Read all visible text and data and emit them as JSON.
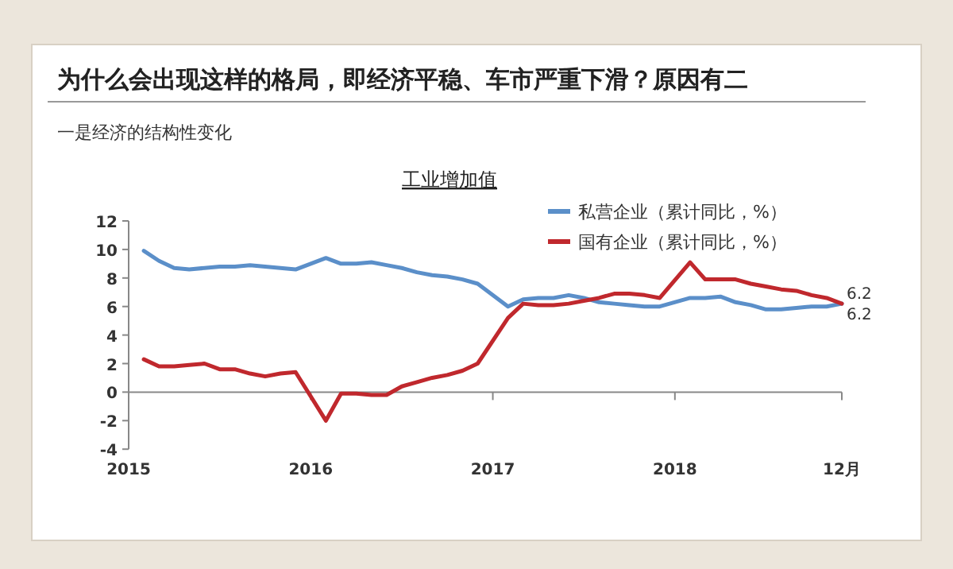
{
  "chart_data": {
    "type": "line",
    "title": "工业增加值",
    "annotations": [
      "为什么会出现这样的格局，即经济平稳、车市严重下滑？原因有二",
      "一是经济的结构性变化"
    ],
    "x": [
      "2015-02",
      "2015-03",
      "2015-04",
      "2015-05",
      "2015-06",
      "2015-07",
      "2015-08",
      "2015-09",
      "2015-10",
      "2015-11",
      "2015-12",
      "2016-02",
      "2016-03",
      "2016-04",
      "2016-05",
      "2016-06",
      "2016-07",
      "2016-08",
      "2016-09",
      "2016-10",
      "2016-11",
      "2016-12",
      "2017-02",
      "2017-03",
      "2017-04",
      "2017-05",
      "2017-06",
      "2017-07",
      "2017-08",
      "2017-09",
      "2017-10",
      "2017-11",
      "2017-12",
      "2018-02",
      "2018-03",
      "2018-04",
      "2018-05",
      "2018-06",
      "2018-07",
      "2018-08",
      "2018-09",
      "2018-10",
      "2018-11",
      "2018-12"
    ],
    "series": [
      {
        "name": "私营企业（累计同比，%）",
        "color": "#5b8fc9",
        "values": [
          9.9,
          9.2,
          8.7,
          8.6,
          8.7,
          8.8,
          8.8,
          8.9,
          8.8,
          8.7,
          8.6,
          9.4,
          9.0,
          9.0,
          9.1,
          8.9,
          8.7,
          8.4,
          8.2,
          8.1,
          7.9,
          7.6,
          6.0,
          6.5,
          6.6,
          6.6,
          6.8,
          6.6,
          6.3,
          6.2,
          6.1,
          6.0,
          6.0,
          6.6,
          6.6,
          6.7,
          6.3,
          6.1,
          5.8,
          5.8,
          5.9,
          6.0,
          6.0,
          6.2
        ],
        "value_labels": [
          null,
          null,
          null,
          null,
          null,
          null,
          null,
          null,
          null,
          null,
          null,
          null,
          null,
          null,
          null,
          null,
          null,
          null,
          null,
          null,
          null,
          null,
          null,
          null,
          null,
          null,
          null,
          null,
          null,
          null,
          null,
          null,
          null,
          null,
          null,
          null,
          null,
          null,
          null,
          null,
          null,
          null,
          null,
          "6.2"
        ]
      },
      {
        "name": "国有企业（累计同比，%）",
        "color": "#c0282d",
        "values": [
          2.3,
          1.8,
          1.8,
          1.9,
          2.0,
          1.6,
          1.6,
          1.3,
          1.1,
          1.3,
          1.4,
          -2.0,
          -0.1,
          -0.1,
          -0.2,
          -0.2,
          0.4,
          0.7,
          1.0,
          1.2,
          1.5,
          2.0,
          5.2,
          6.2,
          6.1,
          6.1,
          6.2,
          6.4,
          6.6,
          6.9,
          6.9,
          6.8,
          6.6,
          9.1,
          7.9,
          7.9,
          7.9,
          7.6,
          7.4,
          7.2,
          7.1,
          6.8,
          6.6,
          6.2
        ],
        "value_labels": [
          null,
          null,
          null,
          null,
          null,
          null,
          null,
          null,
          null,
          null,
          null,
          null,
          null,
          null,
          null,
          null,
          null,
          null,
          null,
          null,
          null,
          null,
          null,
          null,
          null,
          null,
          null,
          null,
          null,
          null,
          null,
          null,
          null,
          null,
          null,
          null,
          null,
          null,
          null,
          null,
          null,
          null,
          null,
          "6.2"
        ]
      }
    ],
    "xlim": [
      "2015-01",
      "2018-12"
    ],
    "xticks": [
      {
        "value": "2015-01",
        "label": "2015"
      },
      {
        "value": "2016-01",
        "label": "2016"
      },
      {
        "value": "2017-01",
        "label": "2017"
      },
      {
        "value": "2018-01",
        "label": "2018"
      },
      {
        "value": "2018-12",
        "label": "12月"
      }
    ],
    "ylim": [
      -4,
      12
    ],
    "yticks": [
      -4,
      -2,
      0,
      2,
      4,
      6,
      8,
      10,
      12
    ],
    "legend": "top right",
    "marker": "none",
    "line_style": "solid"
  }
}
